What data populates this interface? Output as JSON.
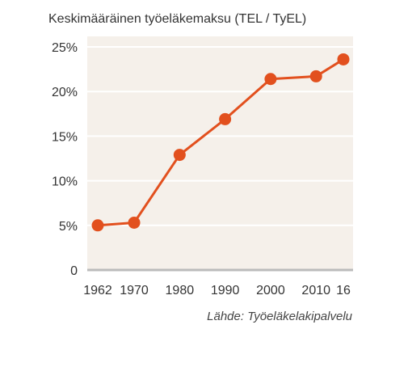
{
  "chart_data": {
    "type": "line",
    "title": "Keskimääräinen työeläkemaksu (TEL / TyEL)",
    "source": "Lähde: Työeläkelakipalvelu",
    "x": [
      1962,
      1970,
      1980,
      1990,
      2000,
      2010,
      2016
    ],
    "x_tick_labels": [
      "1962",
      "1970",
      "1980",
      "1990",
      "2000",
      "2010",
      "16"
    ],
    "series": [
      {
        "values": [
          5.0,
          5.3,
          12.9,
          16.9,
          21.4,
          21.7,
          23.6
        ]
      }
    ],
    "y_ticks": [
      0,
      5,
      10,
      15,
      20,
      25
    ],
    "y_tick_labels": [
      "0",
      "5%",
      "10%",
      "15%",
      "20%",
      "25%"
    ],
    "ylim": [
      0,
      25
    ],
    "xlim": [
      1962,
      2016
    ],
    "grid": true,
    "colors": {
      "line": "#e2501e",
      "plot_bg": "#f5f0ea",
      "grid": "#ffffff",
      "baseline": "#bbbbbb"
    }
  }
}
